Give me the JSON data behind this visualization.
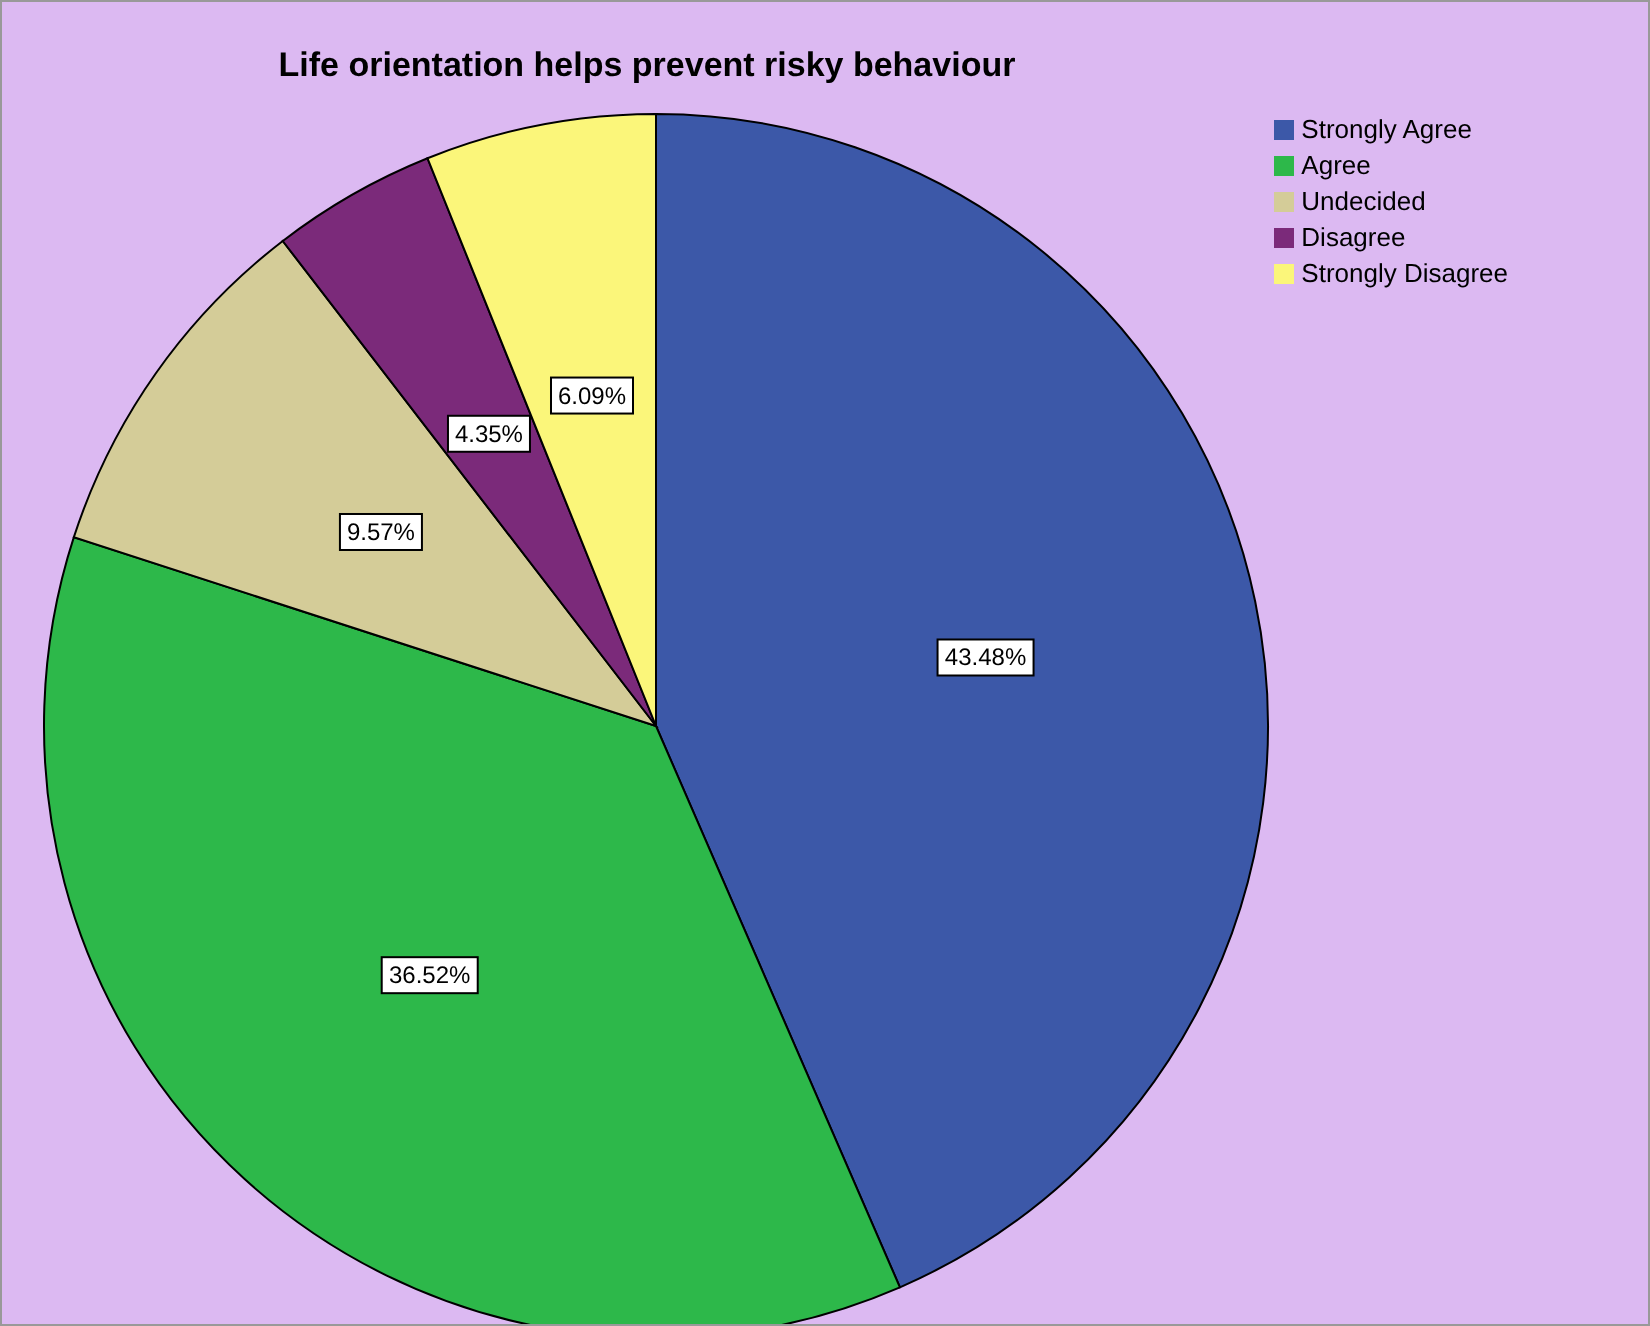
{
  "chart_data": {
    "type": "pie",
    "title": "Life orientation helps prevent risky behaviour",
    "categories": [
      "Strongly Agree",
      "Agree",
      "Undecided",
      "Disagree",
      "Strongly Disagree"
    ],
    "values": [
      43.48,
      36.52,
      9.57,
      4.35,
      6.09
    ],
    "colors": [
      "#3c58a8",
      "#2db84a",
      "#d4cc98",
      "#7b2a7a",
      "#fbf67a"
    ],
    "value_labels": [
      "43.48%",
      "36.52%",
      "9.57%",
      "4.35%",
      "6.09%"
    ],
    "legend": "top right"
  }
}
